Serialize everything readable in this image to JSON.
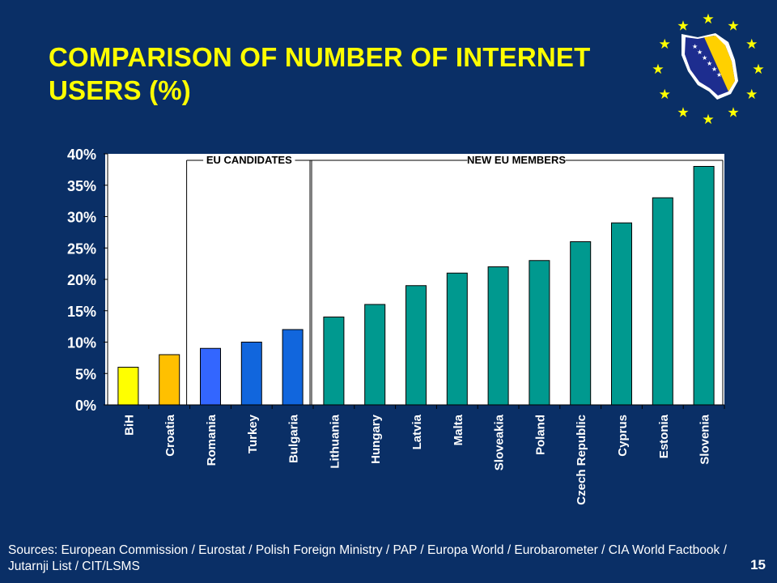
{
  "slide": {
    "title": "COMPARISON OF NUMBER OF INTERNET USERS (%)",
    "sources": "Sources: European Commission / Eurostat / Polish Foreign Ministry / PAP / Europa World / Eurobarometer / CIA World Factbook / Jutarnji List / CIT/LSMS",
    "page_number": "15",
    "emblem_icon": "bosnia-map-eu-stars-icon"
  },
  "chart_data": {
    "type": "bar",
    "categories": [
      "BiH",
      "Croatia",
      "Romania",
      "Turkey",
      "Bulgaria",
      "Lithuania",
      "Hungary",
      "Latvia",
      "Malta",
      "Sloveakia",
      "Poland",
      "Czech Republic",
      "Cyprus",
      "Estonia",
      "Slovenia"
    ],
    "values": [
      6,
      8,
      9,
      10,
      12,
      14,
      16,
      19,
      21,
      22,
      23,
      26,
      29,
      33,
      38
    ],
    "colors": [
      "#ffff00",
      "#ffc000",
      "#3366ff",
      "#1166dd",
      "#1166dd",
      "#00998f",
      "#00998f",
      "#00998f",
      "#00998f",
      "#00998f",
      "#00998f",
      "#00998f",
      "#00998f",
      "#00998f",
      "#00998f"
    ],
    "yticks": [
      "0%",
      "5%",
      "10%",
      "15%",
      "20%",
      "25%",
      "30%",
      "35%",
      "40%"
    ],
    "ylim": [
      0,
      40
    ],
    "groups": [
      {
        "label": "EU CANDIDATES",
        "members": [
          "Romania",
          "Turkey",
          "Bulgaria"
        ]
      },
      {
        "label": "NEW EU MEMBERS",
        "members": [
          "Lithuania",
          "Hungary",
          "Latvia",
          "Malta",
          "Sloveakia",
          "Poland",
          "Czech Republic",
          "Cyprus",
          "Estonia",
          "Slovenia"
        ]
      }
    ],
    "grid": false,
    "legend": "none"
  }
}
